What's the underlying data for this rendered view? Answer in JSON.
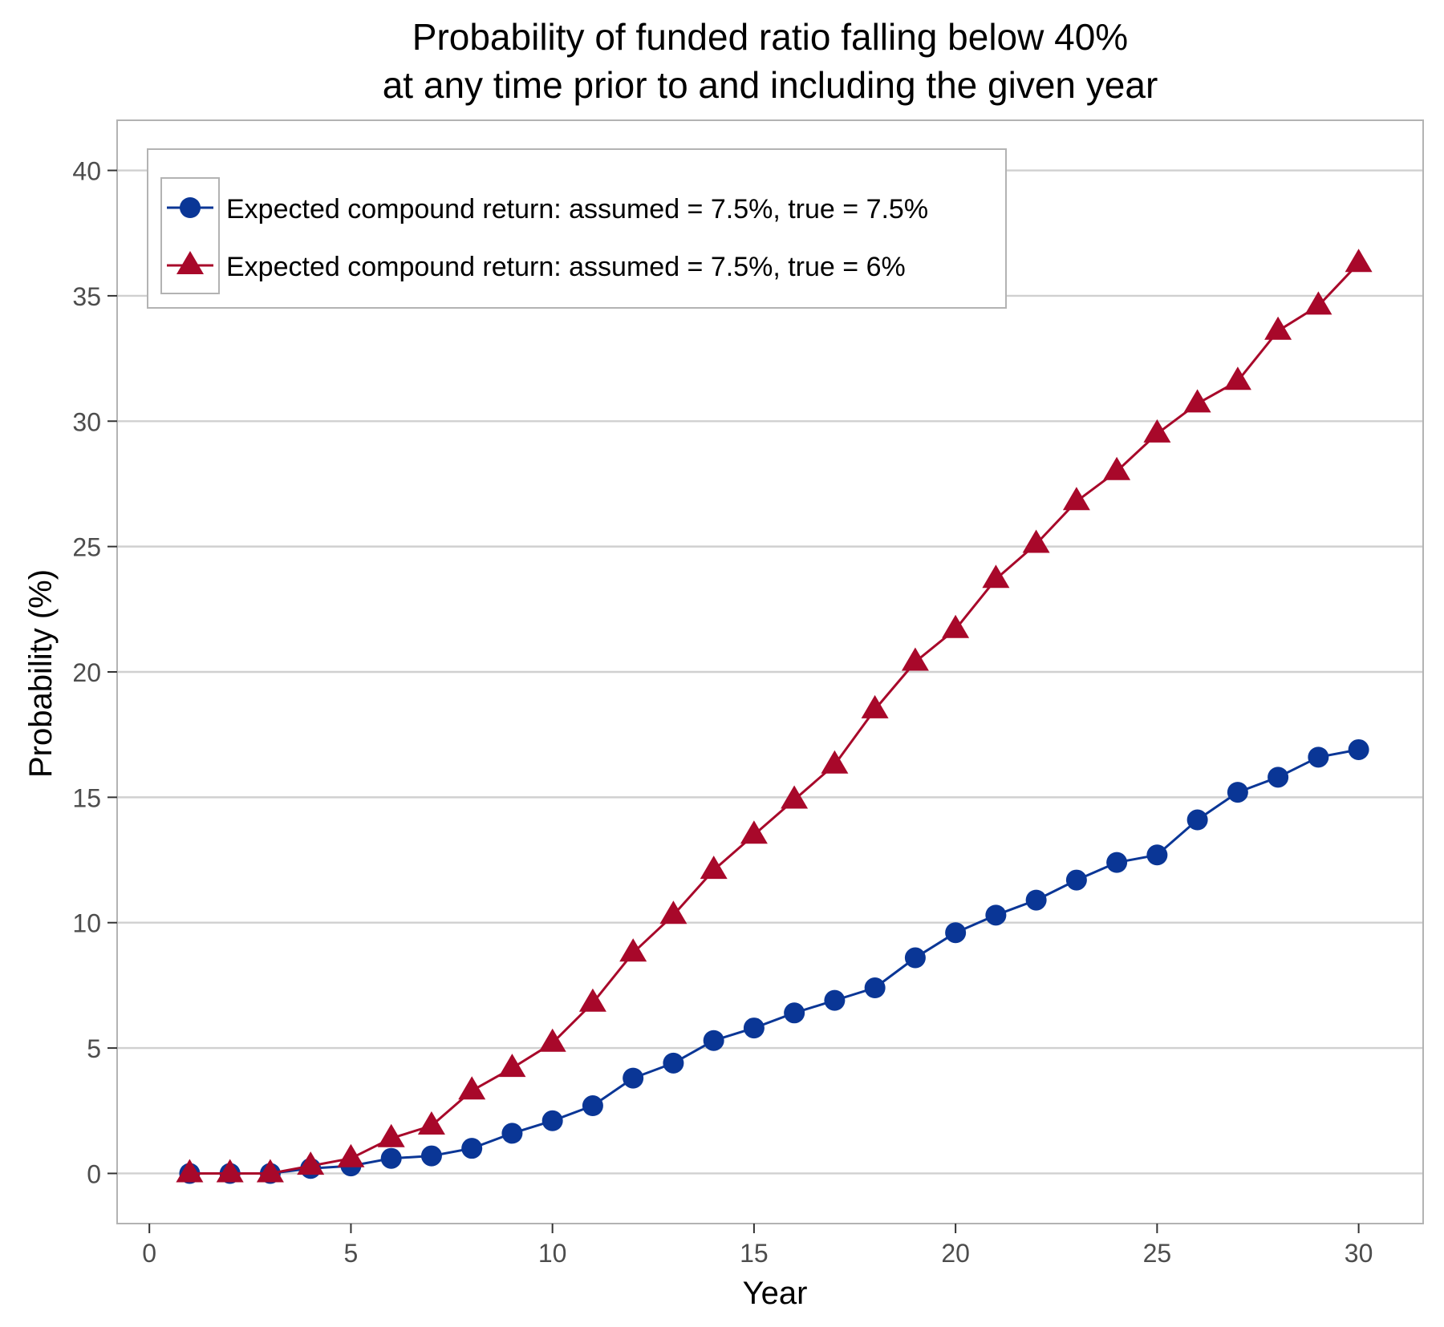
{
  "chart_data": {
    "type": "line",
    "title_line1": "Probability of funded ratio falling below 40%",
    "title_line2": "at any time prior to and including the given year",
    "xlabel": "Year",
    "ylabel": "Probability (%)",
    "xlim": [
      -0.8,
      31.6
    ],
    "ylim": [
      -2,
      42
    ],
    "x_ticks": [
      0,
      5,
      10,
      15,
      20,
      25,
      30
    ],
    "y_ticks": [
      0,
      5,
      10,
      15,
      20,
      25,
      30,
      35,
      40
    ],
    "grid": "horizontal",
    "legend_position": "top-left",
    "x": [
      1,
      2,
      3,
      4,
      5,
      6,
      7,
      8,
      9,
      10,
      11,
      12,
      13,
      14,
      15,
      16,
      17,
      18,
      19,
      20,
      21,
      22,
      23,
      24,
      25,
      26,
      27,
      28,
      29,
      30
    ],
    "series": [
      {
        "name": "Expected compound return: assumed = 7.5%, true = 7.5%",
        "marker": "circle",
        "color": "#0a3696",
        "values": [
          0,
          0,
          0,
          0.2,
          0.3,
          0.6,
          0.7,
          1.0,
          1.6,
          2.1,
          2.7,
          3.8,
          4.4,
          5.3,
          5.8,
          6.4,
          6.9,
          7.4,
          8.6,
          9.6,
          10.3,
          10.9,
          11.7,
          12.4,
          12.7,
          14.1,
          15.2,
          15.8,
          16.6,
          16.9
        ]
      },
      {
        "name": "Expected compound return: assumed = 7.5%, true = 6%",
        "marker": "triangle",
        "color": "#a8082a",
        "values": [
          0,
          0,
          0,
          0.3,
          0.6,
          1.4,
          1.9,
          3.3,
          4.2,
          5.2,
          6.8,
          8.8,
          10.3,
          12.1,
          13.5,
          14.9,
          16.3,
          18.5,
          20.4,
          21.7,
          23.7,
          25.1,
          26.8,
          28.0,
          29.5,
          30.7,
          31.6,
          33.6,
          34.6,
          36.3
        ]
      }
    ]
  }
}
